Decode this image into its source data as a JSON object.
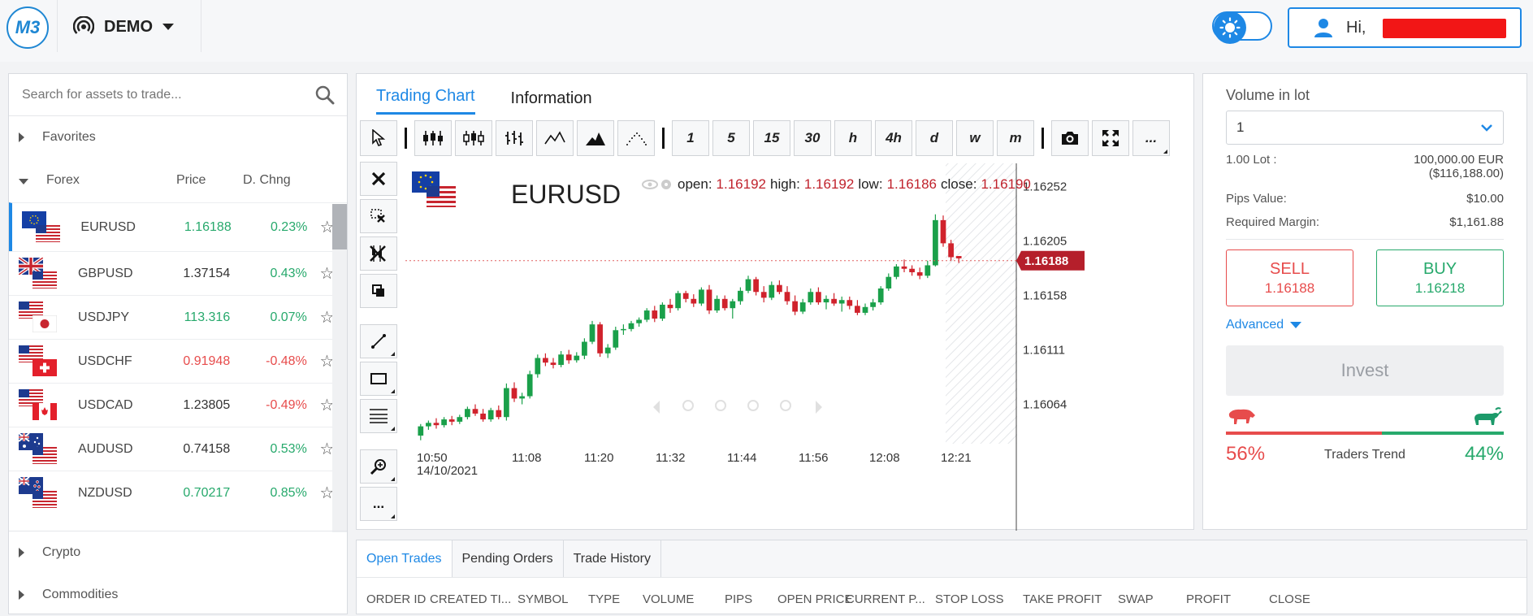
{
  "header": {
    "logo": "M3",
    "account_mode": "DEMO",
    "user_greeting": "Hi,"
  },
  "sidebar": {
    "search_placeholder": "Search for assets to trade...",
    "sections": {
      "favorites": "Favorites",
      "forex": "Forex",
      "crypto": "Crypto",
      "commodities": "Commodities"
    },
    "columns": {
      "price": "Price",
      "change": "D. Chng"
    },
    "assets": [
      {
        "symbol": "EURUSD",
        "price": "1.16188",
        "change": "0.23%",
        "dir": "up",
        "price_dir": "up"
      },
      {
        "symbol": "GBPUSD",
        "price": "1.37154",
        "change": "0.43%",
        "dir": "up",
        "price_dir": "neutral"
      },
      {
        "symbol": "USDJPY",
        "price": "113.316",
        "change": "0.07%",
        "dir": "up",
        "price_dir": "up"
      },
      {
        "symbol": "USDCHF",
        "price": "0.91948",
        "change": "-0.48%",
        "dir": "down",
        "price_dir": "down"
      },
      {
        "symbol": "USDCAD",
        "price": "1.23805",
        "change": "-0.49%",
        "dir": "down",
        "price_dir": "neutral"
      },
      {
        "symbol": "AUDUSD",
        "price": "0.74158",
        "change": "0.53%",
        "dir": "up",
        "price_dir": "neutral"
      },
      {
        "symbol": "NZDUSD",
        "price": "0.70217",
        "change": "0.85%",
        "dir": "up",
        "price_dir": "up"
      }
    ]
  },
  "chart_panel": {
    "tabs": [
      "Trading Chart",
      "Information"
    ],
    "timeframes": [
      "1",
      "5",
      "15",
      "30",
      "h",
      "4h",
      "d",
      "w",
      "m"
    ],
    "more_label": "...",
    "symbol": "EURUSD",
    "ohlc": {
      "open_label": "open:",
      "open": "1.16192",
      "high_label": "high:",
      "high": "1.16192",
      "low_label": "low:",
      "low": "1.16186",
      "close_label": "close:",
      "close": "1.16190"
    },
    "current_price": "1.16188",
    "date_label": "14/10/2021",
    "colors": {
      "up": "#1aa04a",
      "down": "#d0222c",
      "price_tag": "#b51f2b"
    }
  },
  "chart_data": {
    "type": "candlestick",
    "y_ticks": [
      "1.16252",
      "1.16205",
      "1.16158",
      "1.16111",
      "1.16064"
    ],
    "x_ticks": [
      "10:50",
      "11:08",
      "11:20",
      "11:32",
      "11:44",
      "11:56",
      "12:08",
      "12:21"
    ],
    "ylim": [
      1.1603,
      1.16265
    ],
    "candles": [
      [
        1.16037,
        1.16047,
        1.16033,
        1.16045
      ],
      [
        1.16045,
        1.1605,
        1.16042,
        1.16048
      ],
      [
        1.16048,
        1.16052,
        1.16043,
        1.16046
      ],
      [
        1.16046,
        1.16053,
        1.16044,
        1.16051
      ],
      [
        1.16051,
        1.16054,
        1.16046,
        1.16049
      ],
      [
        1.16049,
        1.16055,
        1.16047,
        1.16053
      ],
      [
        1.16053,
        1.16062,
        1.16051,
        1.1606
      ],
      [
        1.1606,
        1.16064,
        1.16054,
        1.16056
      ],
      [
        1.16056,
        1.1606,
        1.16049,
        1.16051
      ],
      [
        1.16051,
        1.16061,
        1.16049,
        1.16059
      ],
      [
        1.16059,
        1.16063,
        1.16051,
        1.16053
      ],
      [
        1.16053,
        1.16082,
        1.1605,
        1.16078
      ],
      [
        1.16078,
        1.16083,
        1.16066,
        1.16069
      ],
      [
        1.16069,
        1.16074,
        1.16064,
        1.16071
      ],
      [
        1.16071,
        1.16093,
        1.16069,
        1.1609
      ],
      [
        1.1609,
        1.16107,
        1.16087,
        1.16104
      ],
      [
        1.16104,
        1.16108,
        1.16097,
        1.161
      ],
      [
        1.161,
        1.16104,
        1.16095,
        1.16098
      ],
      [
        1.16098,
        1.1611,
        1.16096,
        1.16107
      ],
      [
        1.16107,
        1.16111,
        1.16099,
        1.16102
      ],
      [
        1.16102,
        1.16109,
        1.161,
        1.16106
      ],
      [
        1.16106,
        1.16121,
        1.16103,
        1.16118
      ],
      [
        1.16118,
        1.16136,
        1.16116,
        1.16133
      ],
      [
        1.16133,
        1.16135,
        1.16105,
        1.16108
      ],
      [
        1.16108,
        1.16116,
        1.16104,
        1.16113
      ],
      [
        1.16113,
        1.16131,
        1.16111,
        1.16128
      ],
      [
        1.16128,
        1.16133,
        1.16124,
        1.16129
      ],
      [
        1.16129,
        1.16136,
        1.16127,
        1.16134
      ],
      [
        1.16134,
        1.16139,
        1.16131,
        1.16137
      ],
      [
        1.16137,
        1.16147,
        1.16135,
        1.16145
      ],
      [
        1.16145,
        1.16149,
        1.16135,
        1.16138
      ],
      [
        1.16138,
        1.16152,
        1.16136,
        1.1615
      ],
      [
        1.1615,
        1.16155,
        1.16143,
        1.16147
      ],
      [
        1.16147,
        1.16162,
        1.16145,
        1.1616
      ],
      [
        1.1616,
        1.16162,
        1.16152,
        1.16155
      ],
      [
        1.16155,
        1.16159,
        1.16148,
        1.16151
      ],
      [
        1.16151,
        1.16165,
        1.16149,
        1.16163
      ],
      [
        1.16163,
        1.16167,
        1.16142,
        1.16145
      ],
      [
        1.16145,
        1.16158,
        1.16143,
        1.16155
      ],
      [
        1.16155,
        1.16158,
        1.16145,
        1.16147
      ],
      [
        1.16147,
        1.16155,
        1.16138,
        1.16153
      ],
      [
        1.16153,
        1.16165,
        1.1615,
        1.16162
      ],
      [
        1.16162,
        1.16175,
        1.1616,
        1.16172
      ],
      [
        1.16172,
        1.16174,
        1.16158,
        1.16161
      ],
      [
        1.16161,
        1.16166,
        1.16152,
        1.16156
      ],
      [
        1.16156,
        1.1617,
        1.16154,
        1.16167
      ],
      [
        1.16167,
        1.16171,
        1.16159,
        1.16161
      ],
      [
        1.16161,
        1.16166,
        1.1615,
        1.16153
      ],
      [
        1.16153,
        1.16158,
        1.16141,
        1.16144
      ],
      [
        1.16144,
        1.16155,
        1.16142,
        1.16152
      ],
      [
        1.16152,
        1.16164,
        1.1615,
        1.16161
      ],
      [
        1.16161,
        1.16165,
        1.1615,
        1.16152
      ],
      [
        1.16152,
        1.16158,
        1.16146,
        1.16155
      ],
      [
        1.16155,
        1.1616,
        1.16149,
        1.16151
      ],
      [
        1.16151,
        1.16157,
        1.16144,
        1.16154
      ],
      [
        1.16154,
        1.16157,
        1.16146,
        1.16149
      ],
      [
        1.16149,
        1.16154,
        1.16141,
        1.16143
      ],
      [
        1.16143,
        1.16151,
        1.16141,
        1.16148
      ],
      [
        1.16148,
        1.16155,
        1.16145,
        1.16152
      ],
      [
        1.16152,
        1.16166,
        1.1615,
        1.16164
      ],
      [
        1.16164,
        1.16177,
        1.16162,
        1.16174
      ],
      [
        1.16174,
        1.16185,
        1.16172,
        1.16183
      ],
      [
        1.16183,
        1.16189,
        1.16178,
        1.16181
      ],
      [
        1.16181,
        1.16184,
        1.16175,
        1.16178
      ],
      [
        1.16178,
        1.16182,
        1.16172,
        1.16175
      ],
      [
        1.16175,
        1.16188,
        1.16173,
        1.16184
      ],
      [
        1.16184,
        1.16228,
        1.16183,
        1.16223
      ],
      [
        1.16223,
        1.16227,
        1.162,
        1.16203
      ],
      [
        1.16203,
        1.16206,
        1.16188,
        1.16191
      ],
      [
        1.16192,
        1.16192,
        1.16186,
        1.1619
      ]
    ]
  },
  "order_panel": {
    "volume_label": "Volume in lot",
    "volume_value": "1",
    "lot_label": "1.00 Lot :",
    "lot_value": "100,000.00 EUR",
    "lot_value_usd": "($116,188.00)",
    "pips_label": "Pips Value:",
    "pips_value": "$10.00",
    "margin_label": "Required Margin:",
    "margin_value": "$1,161.88",
    "sell_label": "SELL",
    "sell_price": "1.16188",
    "buy_label": "BUY",
    "buy_price": "1.16218",
    "advanced_label": "Advanced",
    "invest_label": "Invest",
    "trend": {
      "sell_pct": "56%",
      "buy_pct": "44%",
      "label": "Traders Trend",
      "sell_fraction": 0.56
    }
  },
  "trades": {
    "tabs": [
      "Open Trades",
      "Pending Orders",
      "Trade History"
    ],
    "columns": [
      "ORDER ID",
      "CREATED TI...",
      "SYMBOL",
      "TYPE",
      "VOLUME",
      "PIPS",
      "OPEN PRICE",
      "CURRENT P...",
      "STOP LOSS",
      "TAKE PROFIT",
      "SWAP",
      "PROFIT",
      "CLOSE"
    ]
  }
}
